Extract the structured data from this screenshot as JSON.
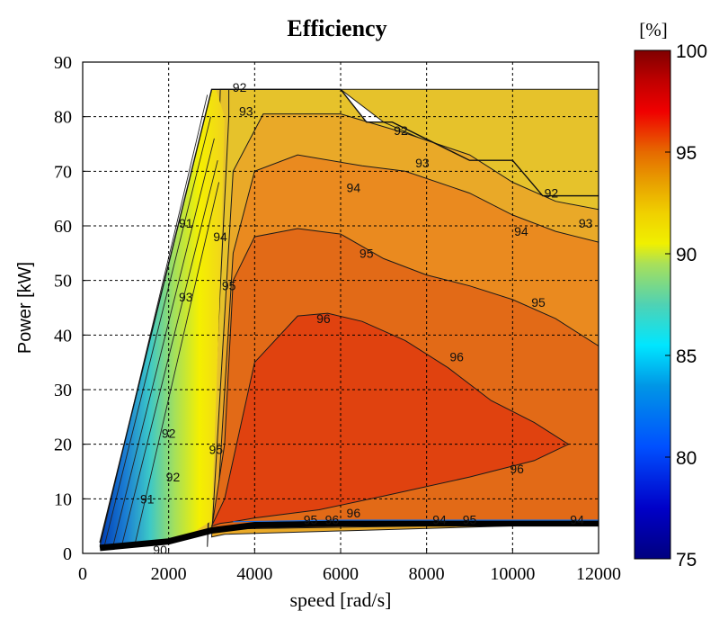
{
  "chart_data": {
    "type": "contour",
    "title": "Efficiency",
    "xlabel": "speed [rad/s]",
    "ylabel": "Power [kW]",
    "xlim": [
      0,
      12000
    ],
    "ylim": [
      0,
      90
    ],
    "xticks": [
      0,
      2000,
      4000,
      6000,
      8000,
      10000,
      12000
    ],
    "yticks": [
      0,
      10,
      20,
      30,
      40,
      50,
      60,
      70,
      80,
      90
    ],
    "grid": true,
    "colorbar": {
      "label": "[%]",
      "range": [
        75,
        100
      ],
      "ticks": [
        75,
        80,
        85,
        90,
        95,
        100
      ],
      "colormap": "jet",
      "placement": "right"
    },
    "contour_levels": [
      92,
      93,
      94,
      95,
      96
    ],
    "max_power_envelope": {
      "speed": [
        400,
        3000,
        3500,
        6000,
        6600,
        7200,
        9000,
        10000,
        10700,
        11000,
        12000
      ],
      "power": [
        2,
        85,
        85,
        85,
        79,
        79,
        72,
        72,
        65.5,
        65.5,
        65.5
      ]
    },
    "min_power_envelope": {
      "speed": [
        400,
        2000,
        3000,
        4000,
        6000,
        12000
      ],
      "power": [
        1,
        2.2,
        4.2,
        5.2,
        5.5,
        5.5
      ]
    },
    "regions": [
      {
        "level": 91,
        "color": "#E6C22B",
        "speed": [
          2900,
          3400,
          3400,
          12000,
          12000,
          10200,
          9000,
          7000,
          6000,
          3200
        ],
        "power": [
          1.2,
          80,
          85,
          85,
          65.5,
          65.5,
          72,
          79,
          85,
          85
        ]
      },
      {
        "level": 92,
        "color": "#E9A928",
        "speed": [
          3000,
          3500,
          4200,
          6000,
          7500,
          9000,
          10000,
          11000,
          12000,
          12000,
          3300
        ],
        "power": [
          3,
          70,
          80.5,
          80.5,
          77,
          73,
          68,
          64.5,
          63,
          5.5,
          3.5
        ]
      },
      {
        "level": 93,
        "color": "#EA8A1F",
        "speed": [
          3100,
          3500,
          4000,
          5000,
          6500,
          7500,
          9000,
          10000,
          11000,
          12000,
          12000,
          3500
        ],
        "power": [
          4,
          55,
          70,
          73,
          71,
          70,
          66,
          62,
          59,
          57,
          5.5,
          4.5
        ]
      },
      {
        "level": 94,
        "color": "#E26A17",
        "speed": [
          3000,
          3300,
          3500,
          4000,
          5000,
          6000,
          7000,
          8000,
          9000,
          10000,
          11000,
          12000,
          12000,
          3400
        ],
        "power": [
          4.5,
          20,
          50,
          58,
          59.5,
          58.5,
          54,
          51,
          49,
          46.5,
          43,
          38,
          5.5,
          5
        ]
      },
      {
        "level": 95,
        "color": "#E0420F",
        "speed": [
          3000,
          3300,
          4000,
          5000,
          5700,
          6500,
          7500,
          8500,
          9500,
          10500,
          11300,
          10500,
          9000,
          7000,
          5500,
          4000,
          3500,
          3200
        ],
        "power": [
          5,
          10,
          35,
          43.5,
          44,
          42.5,
          39,
          34,
          28,
          24,
          20,
          17,
          14,
          10.5,
          8,
          6.5,
          5.8,
          5.5
        ]
      }
    ],
    "contour_labels": [
      {
        "text": "92",
        "speed": 3650,
        "power": 85.4
      },
      {
        "text": "93",
        "speed": 3800,
        "power": 81
      },
      {
        "text": "92",
        "speed": 7400,
        "power": 77.5
      },
      {
        "text": "93",
        "speed": 7900,
        "power": 71.5
      },
      {
        "text": "94",
        "speed": 6300,
        "power": 67
      },
      {
        "text": "92",
        "speed": 10900,
        "power": 66
      },
      {
        "text": "93",
        "speed": 11700,
        "power": 60.5
      },
      {
        "text": "94",
        "speed": 10200,
        "power": 59
      },
      {
        "text": "95",
        "speed": 6600,
        "power": 55
      },
      {
        "text": "95",
        "speed": 10600,
        "power": 46
      },
      {
        "text": "96",
        "speed": 5600,
        "power": 43
      },
      {
        "text": "96",
        "speed": 8700,
        "power": 36
      },
      {
        "text": "96",
        "speed": 10100,
        "power": 15.5
      },
      {
        "text": "96",
        "speed": 6300,
        "power": 7.4
      },
      {
        "text": "94",
        "speed": 3200,
        "power": 58
      },
      {
        "text": "95",
        "speed": 3400,
        "power": 49
      },
      {
        "text": "95",
        "speed": 3100,
        "power": 19
      },
      {
        "text": "95",
        "speed": 5300,
        "power": 6.2
      },
      {
        "text": "96",
        "speed": 5800,
        "power": 6.2
      },
      {
        "text": "94",
        "speed": 8300,
        "power": 6.2
      },
      {
        "text": "95",
        "speed": 9000,
        "power": 6.2
      },
      {
        "text": "94",
        "speed": 11500,
        "power": 6.2
      },
      {
        "text": "92",
        "speed": 2000,
        "power": 22
      },
      {
        "text": "93",
        "speed": 2400,
        "power": 47
      },
      {
        "text": "92",
        "speed": 2100,
        "power": 14
      },
      {
        "text": "91",
        "speed": 1500,
        "power": 10
      },
      {
        "text": "90",
        "speed": 1800,
        "power": 0.7
      },
      {
        "text": "91",
        "speed": 2400,
        "power": 60.5
      }
    ]
  }
}
